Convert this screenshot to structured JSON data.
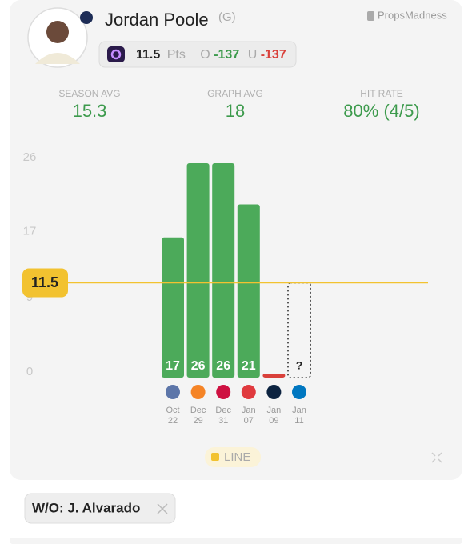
{
  "header": {
    "player": "Jordan Poole",
    "position": "(G)",
    "brand": "PropsMadness",
    "prop": {
      "line": "11.5",
      "stat": "Pts",
      "over_label": "O",
      "over_odds": "-137",
      "under_label": "U",
      "under_odds": "-137"
    }
  },
  "stats": [
    {
      "label": "SEASON AVG",
      "value": "15.3"
    },
    {
      "label": "GRAPH AVG",
      "value": "18"
    },
    {
      "label": "HIT RATE",
      "value": "80% (4/5)"
    }
  ],
  "chart_data": {
    "type": "bar",
    "categories": [
      [
        "Oct",
        "22"
      ],
      [
        "Dec",
        "29"
      ],
      [
        "Dec",
        "31"
      ],
      [
        "Jan",
        "07"
      ],
      [
        "Jan",
        "09"
      ],
      [
        "Jan",
        "11"
      ]
    ],
    "values": [
      17,
      26,
      26,
      21,
      0,
      null
    ],
    "upcoming_label": "?",
    "ylim": [
      0,
      26
    ],
    "yticks": [
      0,
      9,
      17,
      26
    ],
    "line": {
      "value": 11.5,
      "color": "#f2c230"
    },
    "over_color": "#4caa5a",
    "under_color": "#d9403a",
    "legend": "LINE"
  },
  "footer": {
    "chip": "W/O: J. Alvarado"
  }
}
